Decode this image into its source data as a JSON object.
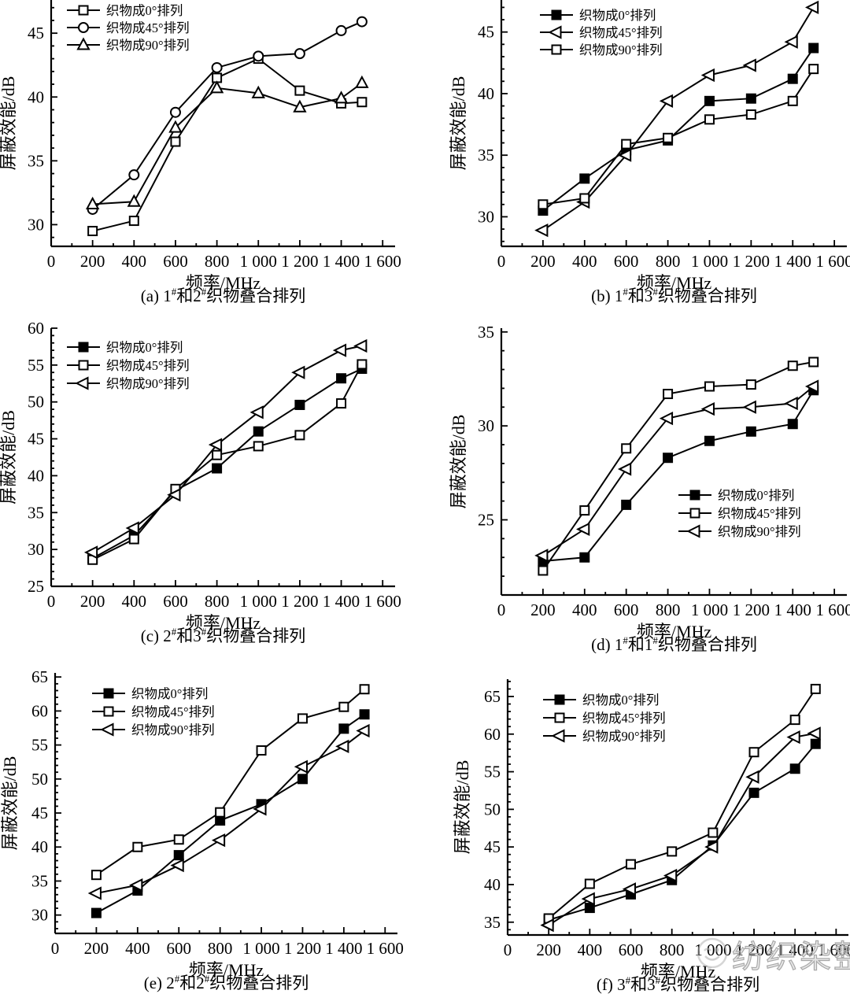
{
  "watermark": {
    "text": "纺织染整",
    "icon": "wechat-smiley-logo",
    "color": "#b0b0b0"
  },
  "chart_data": [
    {
      "id": "a",
      "type": "line",
      "caption_segments": [
        {
          "text": "(a) 1"
        },
        {
          "text": "#",
          "sup": true
        },
        {
          "text": "和2"
        },
        {
          "text": "#",
          "sup": true
        },
        {
          "text": "织物叠合排列"
        }
      ],
      "xlabel": "频率/MHz",
      "ylabel": "屏蔽效能/dB",
      "x": [
        200,
        400,
        600,
        800,
        1000,
        1200,
        1400,
        1500
      ],
      "xticks": {
        "values": [
          0,
          200,
          400,
          600,
          800,
          1000,
          1200,
          1400,
          1600
        ],
        "labels": [
          "0",
          "200",
          "400",
          "600",
          "800",
          "1 000",
          "1 200",
          "1 400",
          "1 600"
        ]
      },
      "xlim": [
        0,
        1660
      ],
      "ylim": [
        28.3,
        47.6
      ],
      "yticks": [
        30,
        35,
        40,
        45
      ],
      "legend_position": "top-left",
      "line_color": "#000000",
      "series": [
        {
          "name": "织物成0°排列",
          "marker": "square",
          "fill": "open",
          "values": [
            29.5,
            30.3,
            36.5,
            41.5,
            43.0,
            40.5,
            39.5,
            39.6
          ]
        },
        {
          "name": "织物成45°排列",
          "marker": "circle",
          "fill": "open",
          "values": [
            31.2,
            33.9,
            38.8,
            42.3,
            43.2,
            43.4,
            45.2,
            45.9
          ]
        },
        {
          "name": "织物成90°排列",
          "marker": "triangle-up",
          "fill": "open",
          "values": [
            31.6,
            31.8,
            37.6,
            40.7,
            40.3,
            39.2,
            39.9,
            41.1
          ]
        }
      ]
    },
    {
      "id": "b",
      "type": "line",
      "caption_segments": [
        {
          "text": "(b) 1"
        },
        {
          "text": "#",
          "sup": true
        },
        {
          "text": "和3"
        },
        {
          "text": "#",
          "sup": true
        },
        {
          "text": "织物叠合排列"
        }
      ],
      "xlabel": "频率/MHz",
      "ylabel": "屏蔽效能/dB",
      "x": [
        200,
        400,
        600,
        800,
        1000,
        1200,
        1400,
        1500
      ],
      "xticks": {
        "values": [
          0,
          200,
          400,
          600,
          800,
          1000,
          1200,
          1400,
          1600
        ],
        "labels": [
          "0",
          "200",
          "400",
          "600",
          "800",
          "1 000",
          "1 200",
          "1 400",
          "1 600"
        ]
      },
      "xlim": [
        0,
        1660
      ],
      "ylim": [
        27.6,
        47.6
      ],
      "yticks": [
        30,
        35,
        40,
        45
      ],
      "legend_position": "top-left",
      "line_color": "#000000",
      "series": [
        {
          "name": "织物成0°排列",
          "marker": "square",
          "fill": "filled",
          "values": [
            30.5,
            33.1,
            35.4,
            36.2,
            39.4,
            39.6,
            41.2,
            43.7
          ]
        },
        {
          "name": "织物成45°排列",
          "marker": "triangle-left",
          "fill": "open",
          "values": [
            28.9,
            31.2,
            35.0,
            39.4,
            41.5,
            42.3,
            44.2,
            47.0
          ]
        },
        {
          "name": "织物成90°排列",
          "marker": "square",
          "fill": "open",
          "values": [
            31.0,
            31.5,
            35.9,
            36.4,
            37.9,
            38.3,
            39.4,
            42.0
          ]
        }
      ]
    },
    {
      "id": "c",
      "type": "line",
      "caption_segments": [
        {
          "text": "(c) 2"
        },
        {
          "text": "#",
          "sup": true
        },
        {
          "text": "和3"
        },
        {
          "text": "#",
          "sup": true
        },
        {
          "text": "织物叠合排列"
        }
      ],
      "xlabel": "频率/MHz",
      "ylabel": "屏蔽效能/dB",
      "x": [
        200,
        400,
        600,
        800,
        1000,
        1200,
        1400,
        1500
      ],
      "xticks": {
        "values": [
          0,
          200,
          400,
          600,
          800,
          1000,
          1200,
          1400,
          1600
        ],
        "labels": [
          "0",
          "200",
          "400",
          "600",
          "800",
          "1 000",
          "1 200",
          "1 400",
          "1 600"
        ]
      },
      "xlim": [
        0,
        1660
      ],
      "ylim": [
        25,
        60
      ],
      "yticks": [
        25,
        30,
        35,
        40,
        45,
        50,
        55,
        60
      ],
      "legend_position": "top-left",
      "line_color": "#000000",
      "series": [
        {
          "name": "织物成0°排列",
          "marker": "square",
          "fill": "filled",
          "values": [
            28.8,
            31.9,
            38.0,
            41.0,
            46.0,
            49.6,
            53.2,
            54.5
          ]
        },
        {
          "name": "织物成45°排列",
          "marker": "square",
          "fill": "open",
          "values": [
            28.6,
            31.4,
            38.2,
            42.8,
            44.0,
            45.5,
            49.8,
            55.1
          ]
        },
        {
          "name": "织物成90°排列",
          "marker": "triangle-left",
          "fill": "open",
          "values": [
            29.6,
            32.9,
            37.4,
            44.2,
            48.6,
            54.0,
            57.0,
            57.6
          ]
        }
      ]
    },
    {
      "id": "d",
      "type": "line",
      "caption_segments": [
        {
          "text": "(d) 1"
        },
        {
          "text": "#",
          "sup": true
        },
        {
          "text": "和1"
        },
        {
          "text": "#",
          "sup": true
        },
        {
          "text": "织物叠合排列"
        }
      ],
      "xlabel": "频率/MHz",
      "ylabel": "屏蔽效能/dB",
      "x": [
        200,
        400,
        600,
        800,
        1000,
        1200,
        1400,
        1500
      ],
      "xticks": {
        "values": [
          0,
          200,
          400,
          600,
          800,
          1000,
          1200,
          1400,
          1600
        ],
        "labels": [
          "0",
          "200",
          "400",
          "600",
          "800",
          "1 000",
          "1 200",
          "1 400",
          "1 600"
        ]
      },
      "xlim": [
        0,
        1660
      ],
      "ylim": [
        21,
        35.2
      ],
      "yticks": [
        25,
        30,
        35
      ],
      "legend_position": "mid-right",
      "line_color": "#000000",
      "series": [
        {
          "name": "织物成0°排列",
          "marker": "square",
          "fill": "filled",
          "values": [
            22.8,
            23.0,
            25.8,
            28.3,
            29.2,
            29.7,
            30.1,
            31.9
          ]
        },
        {
          "name": "织物成45°排列",
          "marker": "square",
          "fill": "open",
          "values": [
            22.3,
            25.5,
            28.8,
            31.7,
            32.1,
            32.2,
            33.2,
            33.4
          ]
        },
        {
          "name": "织物成90°排列",
          "marker": "triangle-left",
          "fill": "open",
          "values": [
            23.1,
            24.5,
            27.7,
            30.4,
            30.9,
            31.0,
            31.2,
            32.1
          ]
        }
      ]
    },
    {
      "id": "e",
      "type": "line",
      "caption_segments": [
        {
          "text": "(e) 2"
        },
        {
          "text": "#",
          "sup": true
        },
        {
          "text": "和2"
        },
        {
          "text": "#",
          "sup": true
        },
        {
          "text": "织物叠合排列"
        }
      ],
      "xlabel": "频率/MHz",
      "ylabel": "屏蔽效能/dB",
      "x": [
        200,
        400,
        600,
        800,
        1000,
        1200,
        1400,
        1500
      ],
      "xticks": {
        "values": [
          0,
          200,
          400,
          600,
          800,
          1000,
          1200,
          1400,
          1600
        ],
        "labels": [
          "0",
          "200",
          "400",
          "600",
          "800",
          "1 000",
          "1 200",
          "1 400",
          "1 600"
        ]
      },
      "xlim": [
        0,
        1660
      ],
      "ylim": [
        27.3,
        65.6
      ],
      "yticks": [
        30,
        35,
        40,
        45,
        50,
        55,
        60,
        65
      ],
      "legend_position": "top-left",
      "line_color": "#000000",
      "series": [
        {
          "name": "织物成0°排列",
          "marker": "square",
          "fill": "filled",
          "values": [
            30.3,
            33.6,
            38.8,
            43.9,
            46.3,
            50.0,
            57.4,
            59.5
          ]
        },
        {
          "name": "织物成45°排列",
          "marker": "square",
          "fill": "open",
          "values": [
            35.9,
            40.0,
            41.1,
            45.1,
            54.2,
            58.9,
            60.6,
            63.2
          ]
        },
        {
          "name": "织物成90°排列",
          "marker": "triangle-left",
          "fill": "open",
          "values": [
            33.2,
            34.4,
            37.3,
            41.0,
            45.6,
            51.8,
            54.8,
            57.1
          ]
        }
      ]
    },
    {
      "id": "f",
      "type": "line",
      "caption_segments": [
        {
          "text": "(f) 3"
        },
        {
          "text": "#",
          "sup": true
        },
        {
          "text": "和3"
        },
        {
          "text": "#",
          "sup": true
        },
        {
          "text": "织物叠合排列"
        }
      ],
      "xlabel": "频率/MHz",
      "ylabel": "屏蔽效能/dB",
      "x": [
        200,
        400,
        600,
        800,
        1000,
        1200,
        1400,
        1500
      ],
      "xticks": {
        "values": [
          0,
          200,
          400,
          600,
          800,
          1000,
          1200,
          1400,
          1600
        ],
        "labels": [
          "0",
          "200",
          "400",
          "600",
          "800",
          "1 000",
          "1 200",
          "1 400",
          "1 600"
        ]
      },
      "xlim": [
        0,
        1660
      ],
      "ylim": [
        33.3,
        67.3
      ],
      "yticks": [
        35,
        40,
        45,
        50,
        55,
        60,
        65
      ],
      "legend_position": "top-left",
      "line_color": "#000000",
      "series": [
        {
          "name": "织物成0°排列",
          "marker": "square",
          "fill": "filled",
          "values": [
            35.3,
            36.9,
            38.7,
            40.6,
            45.2,
            52.2,
            55.4,
            58.7
          ]
        },
        {
          "name": "织物成45°排列",
          "marker": "square",
          "fill": "open",
          "values": [
            35.5,
            40.1,
            42.7,
            44.4,
            46.9,
            57.6,
            61.9,
            66.0
          ]
        },
        {
          "name": "织物成90°排列",
          "marker": "triangle-left",
          "fill": "open",
          "values": [
            34.6,
            38.1,
            39.4,
            41.2,
            45.0,
            54.3,
            59.6,
            60.1
          ]
        }
      ]
    }
  ]
}
